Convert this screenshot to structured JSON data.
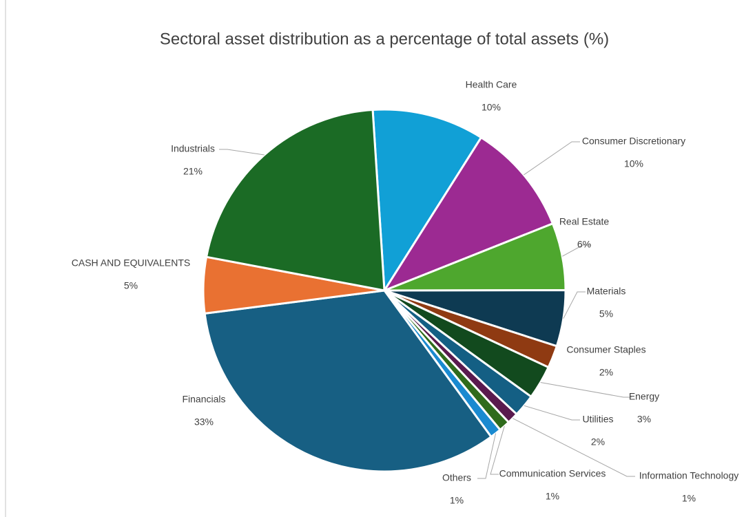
{
  "chart_data": {
    "type": "pie",
    "title": "Sectoral asset distribution as a percentage of total assets (%)",
    "categories": [
      "Health Care",
      "Consumer Discretionary",
      "Real Estate",
      "Materials",
      "Consumer Staples",
      "Energy",
      "Utilities",
      "Information Technology",
      "Communication Services",
      "Others",
      "Financials",
      "CASH AND EQUIVALENTS",
      "Industrials"
    ],
    "values": [
      10,
      10,
      6,
      5,
      2,
      3,
      2,
      1,
      1,
      1,
      33,
      5,
      21
    ],
    "value_labels": [
      "10%",
      "10%",
      "6%",
      "5%",
      "2%",
      "3%",
      "2%",
      "1%",
      "1%",
      "1%",
      "33%",
      "5%",
      "21%"
    ],
    "colors": [
      "#11a0d6",
      "#9c2a92",
      "#4ea72e",
      "#0e3a52",
      "#8f3a12",
      "#124a1e",
      "#145f84",
      "#5a1a4e",
      "#2f6b1c",
      "#1a8ad0",
      "#175f83",
      "#e97132",
      "#1b6b25"
    ]
  }
}
